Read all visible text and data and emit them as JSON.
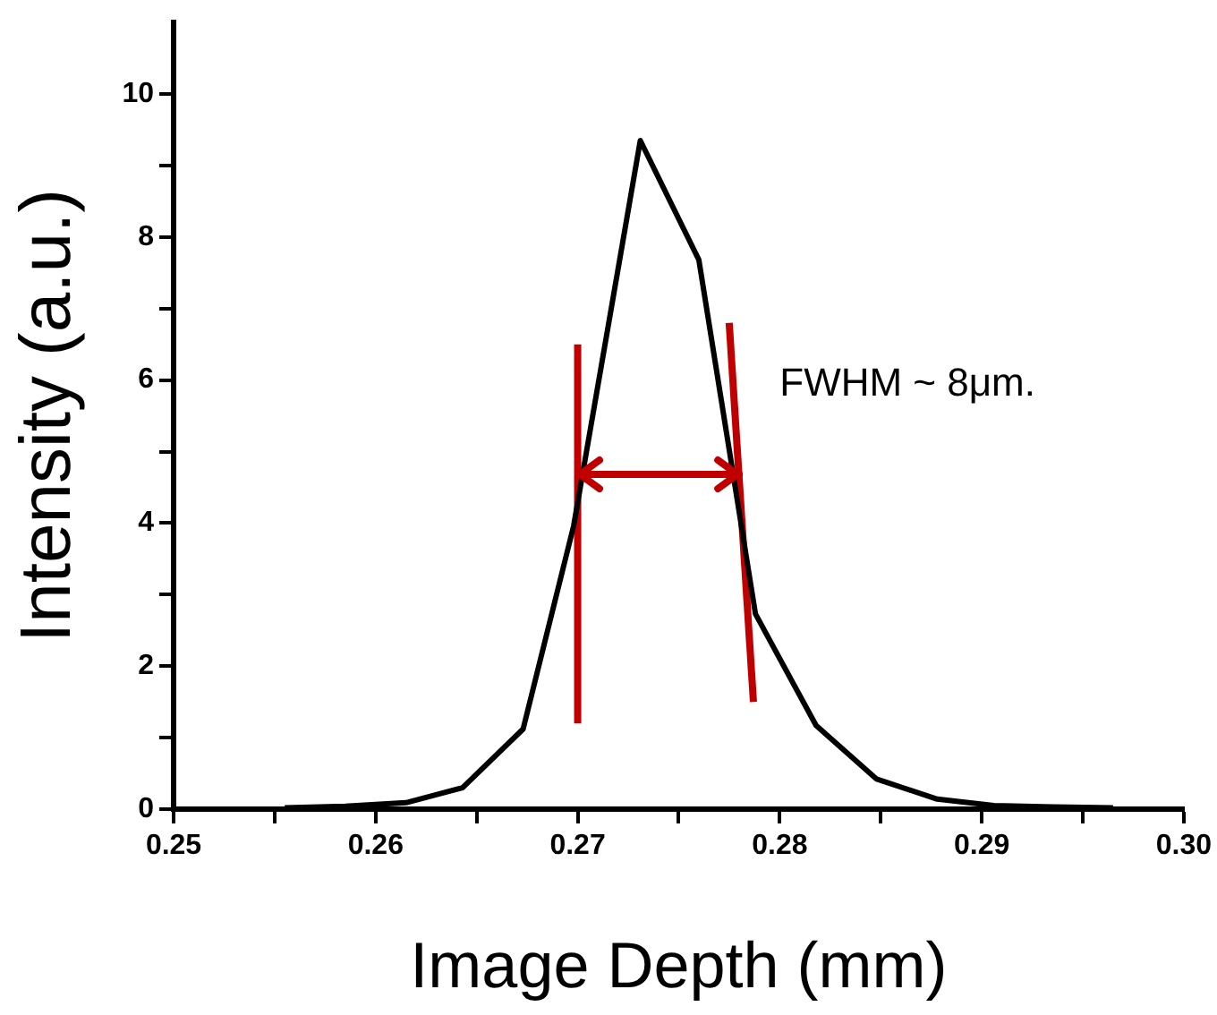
{
  "chart_data": {
    "type": "line",
    "xlabel": "Image Depth (mm)",
    "ylabel": "Intensity (a.u.)",
    "xlim": [
      0.25,
      0.3
    ],
    "ylim": [
      0,
      11
    ],
    "xticks": [
      0.25,
      {
        "value": 0.255,
        "label": null
      },
      0.26,
      {
        "value": 0.265,
        "label": null
      },
      0.27,
      {
        "value": 0.275,
        "label": null
      },
      0.28,
      {
        "value": 0.285,
        "label": null
      },
      0.29,
      {
        "value": 0.295,
        "label": null
      },
      {
        "value": 0.3,
        "label": "0.30"
      }
    ],
    "yticks": [
      0,
      {
        "value": 1,
        "label": null
      },
      2,
      {
        "value": 3,
        "label": null
      },
      4,
      {
        "value": 5,
        "label": null
      },
      6,
      {
        "value": 7,
        "label": null
      },
      8,
      {
        "value": 9,
        "label": null
      },
      10
    ],
    "grid": false,
    "legend": false,
    "marker": "none",
    "line_style": "solid",
    "annotations": [
      "FWHM ~ 8μm."
    ],
    "series": [
      {
        "color": "#000000",
        "x": [
          0.2555,
          0.2585,
          0.2615,
          0.2643,
          0.2673,
          0.2698,
          0.2731,
          0.276,
          0.2788,
          0.2818,
          0.2848,
          0.2878,
          0.2906,
          0.2935,
          0.2965
        ],
        "values": [
          0.02,
          0.04,
          0.09,
          0.3,
          1.12,
          3.96,
          9.35,
          7.68,
          2.73,
          1.17,
          0.42,
          0.14,
          0.05,
          0.03,
          0.02
        ]
      },
      {
        "type": "line",
        "color": "#c00000",
        "x": [
          0.27,
          0.27
        ],
        "values": [
          1.2,
          6.5
        ]
      },
      {
        "type": "line",
        "color": "#c00000",
        "x": [
          0.2775,
          0.2787
        ],
        "values": [
          6.8,
          1.5
        ]
      }
    ]
  }
}
